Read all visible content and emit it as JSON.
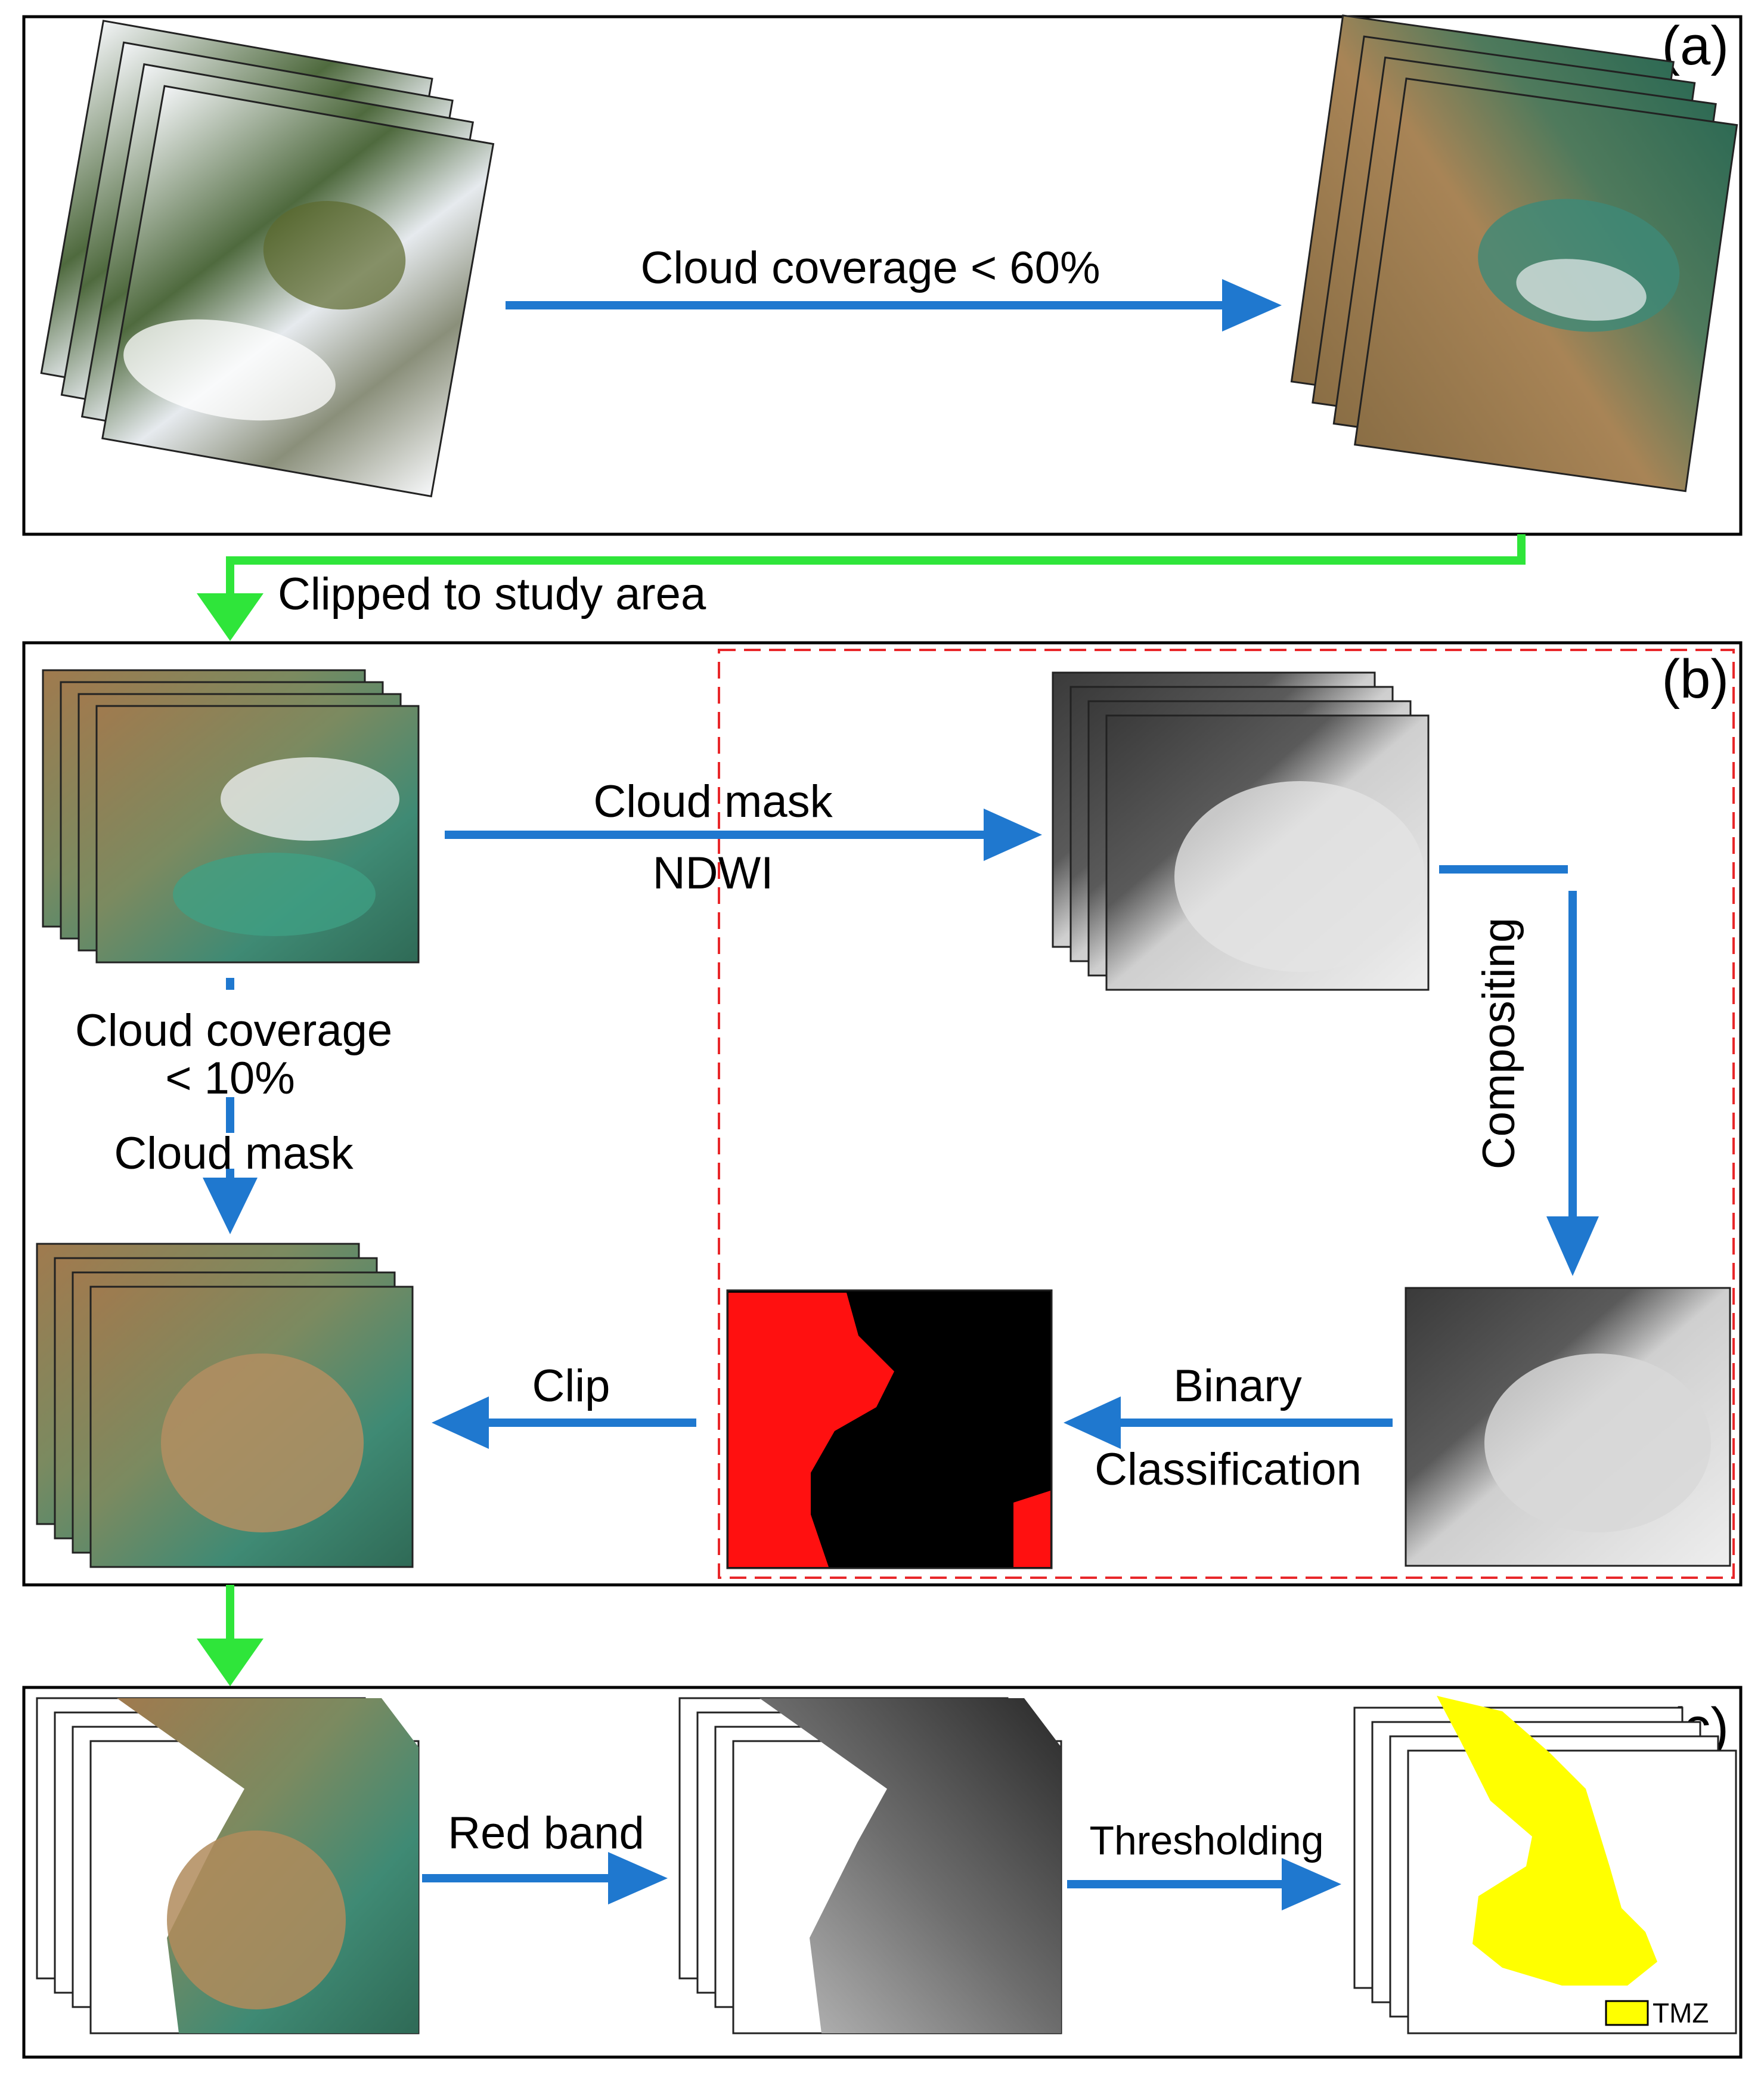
{
  "panels": {
    "a": {
      "label": "(a)"
    },
    "b": {
      "label": "(b)"
    },
    "c": {
      "label": "(c)"
    }
  },
  "steps": {
    "cloud_coverage_60": "Cloud  coverage  < 60%",
    "clipped": "Clipped to study area",
    "cloud_mask_ndwi_1": "Cloud mask",
    "cloud_mask_ndwi_2": "NDWI",
    "cloud_coverage_10_1": "Cloud  coverage",
    "cloud_coverage_10_2": "< 10%",
    "cloud_mask": "Cloud  mask",
    "compositing": "Compositing",
    "binary_1": "Binary",
    "binary_2": "Classification",
    "clip": "Clip",
    "red_band": "Red  band",
    "thresholding": "Thresholding"
  },
  "legend": {
    "tmz": "TMZ"
  },
  "colors": {
    "blue_arrow": "#1f78cf",
    "green_arrow": "#2fe53a",
    "dashed_box": "#e8272a",
    "mask_red": "#ff1010",
    "tmz_yellow": "#ffff00"
  }
}
